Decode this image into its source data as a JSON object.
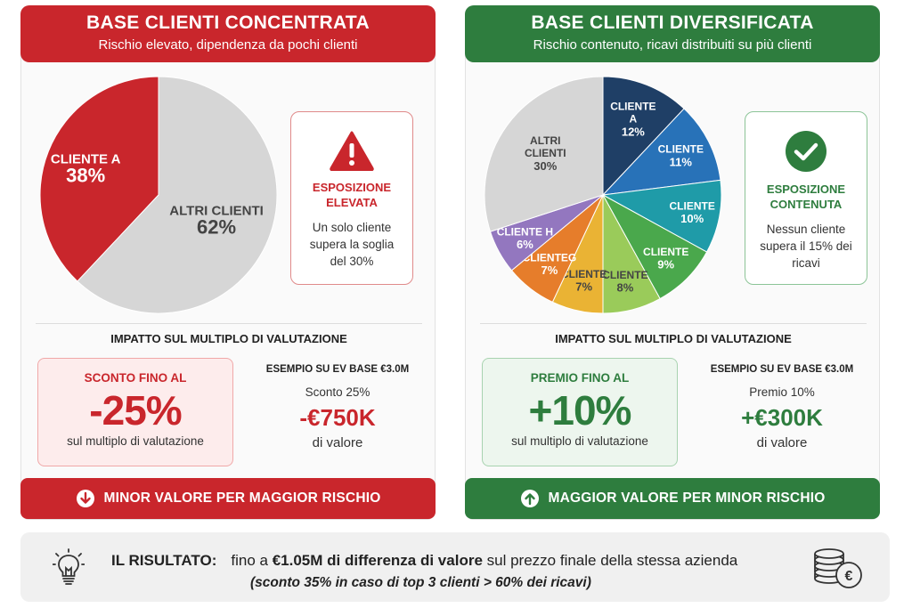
{
  "left": {
    "title": "BASE CLIENTI CONCENTRATA",
    "subtitle": "Rischio elevato, dipendenza da pochi clienti",
    "chart_data": {
      "type": "pie",
      "slices": [
        {
          "label": "CLIENTE A",
          "value": 38,
          "value_label": "38%",
          "color": "#c9262c"
        },
        {
          "label": "ALTRI CLIENTI",
          "value": 62,
          "value_label": "62%",
          "color": "#d6d6d6"
        }
      ]
    },
    "callout": {
      "icon": "warning-icon",
      "title": "ESPOSIZIONE ELEVATA",
      "body": "Un solo cliente supera la soglia del 30%"
    },
    "impact_title": "IMPATTO SUL MULTIPLO DI VALUTAZIONE",
    "impact": {
      "label": "SCONTO FINO AL",
      "value": "-25%",
      "sub": "sul multiplo di valutazione"
    },
    "example": {
      "title": "ESEMPIO SU EV BASE €3.0M",
      "line": "Sconto 25%",
      "value": "-€750K",
      "sub": "di valore"
    },
    "footer": {
      "icon": "arrow-down-circle-icon",
      "label": "MINOR VALORE PER MAGGIOR RISCHIO"
    }
  },
  "right": {
    "title": "BASE CLIENTI DIVERSIFICATA",
    "subtitle": "Rischio contenuto, ricavi distribuiti su più clienti",
    "chart_data": {
      "type": "pie",
      "slices": [
        {
          "label": "CLIENTE A",
          "value": 12,
          "value_label": "12%",
          "color": "#1f3f66"
        },
        {
          "label": "CLIENTE",
          "value": 11,
          "value_label": "11%",
          "color": "#2872b8"
        },
        {
          "label": "CLIENTE",
          "value": 10,
          "value_label": "10%",
          "color": "#1f9ba8"
        },
        {
          "label": "CLIENTE",
          "value": 9,
          "value_label": "9%",
          "color": "#4aa84c"
        },
        {
          "label": "CLIENTE",
          "value": 8,
          "value_label": "8%",
          "color": "#9acb5a"
        },
        {
          "label": "CLIENTE",
          "value": 7,
          "value_label": "7%",
          "color": "#eab334"
        },
        {
          "label": "CLIENTEG",
          "value": 7,
          "value_label": "7%",
          "color": "#e67d2b"
        },
        {
          "label": "CLIENTE H",
          "value": 6,
          "value_label": "6%",
          "color": "#9377bf"
        },
        {
          "label": "ALTRI CLIENTI",
          "value": 30,
          "value_label": "30%",
          "color": "#d6d6d6"
        }
      ]
    },
    "callout": {
      "icon": "checkmark-icon",
      "title": "ESPOSIZIONE CONTENUTA",
      "body": "Nessun cliente supera il 15% dei ricavi"
    },
    "impact_title": "IMPATTO SUL MULTIPLO DI VALUTAZIONE",
    "impact": {
      "label": "PREMIO FINO AL",
      "value": "+10%",
      "sub": "sul multiplo di valutazione"
    },
    "example": {
      "title": "ESEMPIO SU EV BASE €3.0M",
      "line": "Premio 10%",
      "value": "+€300K",
      "sub": "di valore"
    },
    "footer": {
      "icon": "arrow-up-circle-icon",
      "label": "MAGGIOR VALORE PER MINOR RISCHIO"
    }
  },
  "result": {
    "label": "IL RISULTATO:",
    "text_pre": "fino a",
    "text_bold": "€1.05M di differenza di valore",
    "text_post": "sul prezzo finale della stessa azienda",
    "note": "(sconto 35% in caso di top 3 clienti > 60% dei ricavi)",
    "icon_left": "lightbulb-icon",
    "icon_right": "coins-euro-icon"
  }
}
